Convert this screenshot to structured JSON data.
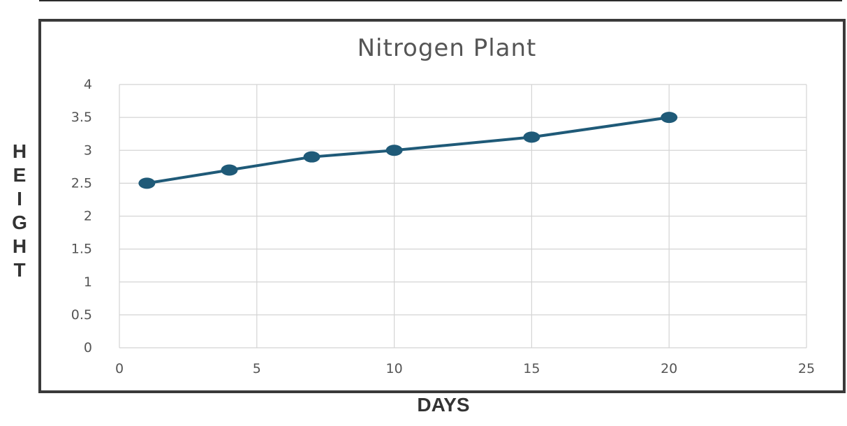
{
  "chart_data": {
    "type": "line",
    "title": "Nitrogen Plant",
    "xlabel": "DAYS",
    "ylabel": "HEIGHT",
    "xlim": [
      0,
      25
    ],
    "ylim": [
      0,
      4
    ],
    "x_ticks": [
      "0",
      "5",
      "10",
      "15",
      "20",
      "25"
    ],
    "y_ticks": [
      "0",
      "0.5",
      "1",
      "1.5",
      "2",
      "2.5",
      "3",
      "3.5",
      "4"
    ],
    "grid": true,
    "legend": "none",
    "series": [
      {
        "x": [
          1,
          4,
          7,
          10,
          15,
          20
        ],
        "y": [
          2.5,
          2.7,
          2.9,
          3.0,
          3.2,
          3.5
        ],
        "color": "#1f5a78"
      }
    ]
  }
}
